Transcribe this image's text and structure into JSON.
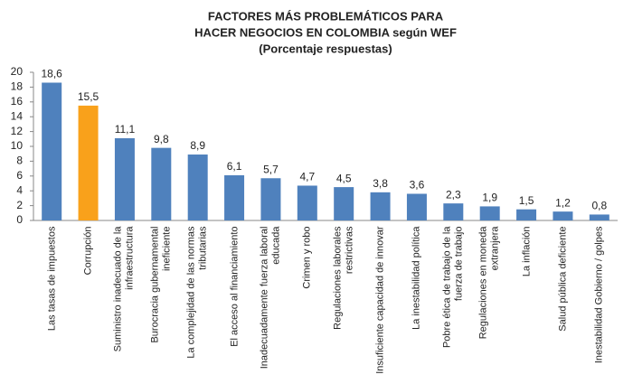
{
  "chart_data": {
    "type": "bar",
    "title": [
      "FACTORES MÁS PROBLEMÁTICOS PARA",
      "HACER NEGOCIOS EN COLOMBIA según WEF",
      "(Porcentaje respuestas)"
    ],
    "categories": [
      "Las tasas de impuestos",
      "Corrupción",
      "Suministro inadecuado de la infraestructura",
      "Burocracia gubernamental ineficiente",
      "La complejidad de las normas tributarias",
      "El acceso al financiamiento",
      "Inadecuadamente fuerza laboral educada",
      "Crimen y robo",
      "Regulaciones laborales restrictivas",
      "Insuficiente capacidad de innovar",
      "La inestabilidad política",
      "Pobre ética de trabajo de la fuerza de trabajo",
      "Regulaciones en moneda extranjera",
      "La inflación",
      "Salud pública deficiente",
      "Inestabilidad Gobierno / golpes"
    ],
    "values": [
      18.6,
      15.5,
      11.1,
      9.8,
      8.9,
      6.1,
      5.7,
      4.7,
      4.5,
      3.8,
      3.6,
      2.3,
      1.9,
      1.5,
      1.2,
      0.8
    ],
    "value_labels": [
      "18,6",
      "15,5",
      "11,1",
      "9,8",
      "8,9",
      "6,1",
      "5,7",
      "4,7",
      "4,5",
      "3,8",
      "3,6",
      "2,3",
      "1,9",
      "1,5",
      "1,2",
      "0,8"
    ],
    "colors": [
      "#4f81bd",
      "#f9a11b",
      "#4f81bd",
      "#4f81bd",
      "#4f81bd",
      "#4f81bd",
      "#4f81bd",
      "#4f81bd",
      "#4f81bd",
      "#4f81bd",
      "#4f81bd",
      "#4f81bd",
      "#4f81bd",
      "#4f81bd",
      "#4f81bd",
      "#4f81bd"
    ],
    "ylim": [
      0,
      20
    ],
    "yticks": [
      0,
      2,
      4,
      6,
      8,
      10,
      12,
      14,
      16,
      18,
      20
    ],
    "grid": false
  }
}
